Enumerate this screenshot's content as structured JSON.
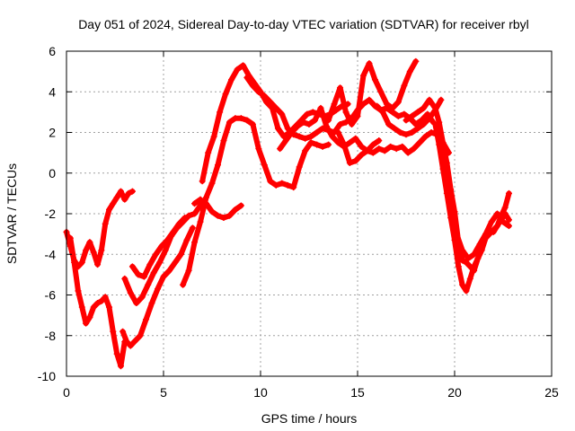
{
  "chart_data": {
    "type": "scatter",
    "title": "Day 051 of 2024, Sidereal Day-to-day VTEC variation (SDTVAR) for receiver rbyl",
    "xlabel": "GPS time / hours",
    "ylabel": "SDTVAR / TECUs",
    "xlim": [
      0,
      25
    ],
    "ylim": [
      -10,
      6
    ],
    "xticks": [
      "0",
      "5",
      "10",
      "15",
      "20",
      "25"
    ],
    "yticks": [
      "-10",
      "-8",
      "-6",
      "-4",
      "-2",
      "0",
      "2",
      "4",
      "6"
    ],
    "grid": true,
    "marker": "+",
    "color": "#ff0000",
    "series": [
      {
        "x": [
          0.0,
          0.2,
          0.4,
          0.6,
          0.8,
          1.0,
          1.2,
          1.4,
          1.6,
          1.8,
          2.0,
          2.2,
          2.4,
          2.6,
          2.8,
          3.0,
          3.2,
          3.4
        ],
        "y": [
          -2.9,
          -3.6,
          -4.3,
          -4.6,
          -4.4,
          -3.8,
          -3.4,
          -3.9,
          -4.5,
          -3.8,
          -2.5,
          -1.8,
          -1.5,
          -1.2,
          -0.9,
          -1.3,
          -1.0,
          -0.9
        ]
      },
      {
        "x": [
          0.2,
          0.4,
          0.6,
          0.8,
          1.0,
          1.2,
          1.4,
          1.6,
          1.8,
          2.0,
          2.2,
          2.4,
          2.6,
          2.8,
          3.0
        ],
        "y": [
          -3.2,
          -4.4,
          -5.8,
          -6.6,
          -7.4,
          -7.1,
          -6.6,
          -6.4,
          -6.3,
          -6.1,
          -6.6,
          -7.8,
          -8.9,
          -9.5,
          -8.3
        ]
      },
      {
        "x": [
          2.9,
          3.1,
          3.3,
          3.5,
          3.8,
          4.1,
          4.4,
          4.7,
          5.0,
          5.3,
          5.6,
          5.9,
          6.2,
          6.5
        ],
        "y": [
          -7.8,
          -8.3,
          -8.5,
          -8.3,
          -8.0,
          -7.2,
          -6.4,
          -5.7,
          -5.1,
          -4.8,
          -4.4,
          -4.0,
          -3.3,
          -2.7
        ]
      },
      {
        "x": [
          3.4,
          3.7,
          4.0,
          4.3,
          4.6,
          4.9,
          5.2,
          5.5,
          5.8,
          6.1
        ],
        "y": [
          -4.6,
          -5.0,
          -5.1,
          -4.5,
          -4.0,
          -3.6,
          -3.3,
          -2.9,
          -2.5,
          -2.2
        ]
      },
      {
        "x": [
          3.0,
          3.3,
          3.6,
          3.9,
          4.2,
          4.5,
          4.8,
          5.1,
          5.4,
          5.7,
          6.0,
          6.3,
          6.6,
          6.9,
          7.1
        ],
        "y": [
          -5.2,
          -5.9,
          -6.4,
          -6.1,
          -5.5,
          -4.9,
          -4.4,
          -3.8,
          -3.1,
          -2.7,
          -2.4,
          -2.1,
          -2.0,
          -1.6,
          -1.4
        ]
      },
      {
        "x": [
          6.0,
          6.3,
          6.6,
          6.9,
          7.2,
          7.5,
          7.8,
          8.1,
          8.4,
          8.7,
          9.0,
          9.3,
          9.6,
          9.9,
          10.2,
          10.5,
          10.8,
          11.1,
          11.4,
          11.7,
          12.0,
          12.3,
          12.6,
          12.9,
          13.2,
          13.5
        ],
        "y": [
          -5.5,
          -4.8,
          -3.4,
          -2.4,
          -1.2,
          -0.5,
          0.4,
          1.6,
          2.5,
          2.7,
          2.7,
          2.6,
          2.4,
          1.2,
          0.4,
          -0.4,
          -0.6,
          -0.5,
          -0.6,
          -0.7,
          0.3,
          1.1,
          1.5,
          1.4,
          1.3,
          1.4
        ]
      },
      {
        "x": [
          7.0,
          7.3,
          7.6,
          7.9,
          8.2,
          8.5,
          8.8,
          9.1,
          9.4,
          9.7,
          10.0,
          10.3,
          10.6,
          10.9,
          11.2,
          11.5,
          11.8,
          12.1,
          12.4,
          12.7,
          13.0,
          13.3,
          13.6,
          13.9,
          14.2,
          14.5
        ],
        "y": [
          -0.4,
          1.0,
          1.8,
          3.0,
          3.9,
          4.6,
          5.1,
          5.3,
          4.8,
          4.4,
          4.0,
          3.5,
          3.2,
          2.2,
          1.8,
          2.0,
          2.3,
          2.6,
          2.9,
          3.0,
          2.9,
          2.8,
          2.9,
          3.1,
          3.3,
          3.4
        ]
      },
      {
        "x": [
          6.6,
          6.9,
          7.2,
          7.5,
          7.8,
          8.1,
          8.4,
          8.7,
          9.0
        ],
        "y": [
          -1.5,
          -1.3,
          -1.5,
          -1.9,
          -2.1,
          -2.2,
          -2.1,
          -1.8,
          -1.6
        ]
      },
      {
        "x": [
          9.3,
          9.6,
          9.9,
          10.2,
          10.5,
          10.8,
          11.1,
          11.4,
          11.7,
          12.0,
          12.3,
          12.6,
          12.9,
          13.2,
          13.5,
          13.8,
          14.1,
          14.4,
          14.7,
          15.0,
          15.3,
          15.6,
          15.9,
          16.2,
          16.5,
          16.8,
          17.1,
          17.4,
          17.7,
          18.0,
          18.3,
          18.6,
          18.9
        ],
        "y": [
          4.7,
          4.3,
          4.0,
          3.8,
          3.5,
          3.2,
          2.9,
          2.2,
          1.9,
          1.8,
          1.7,
          1.8,
          2.0,
          2.2,
          2.1,
          2.0,
          2.4,
          2.5,
          2.7,
          3.1,
          3.4,
          3.6,
          3.3,
          3.1,
          3.2,
          3.0,
          2.8,
          2.9,
          2.7,
          2.4,
          2.6,
          2.9,
          2.5
        ]
      },
      {
        "x": [
          11.0,
          11.3,
          11.6,
          11.9,
          12.2,
          12.5,
          12.8,
          13.1,
          13.4,
          13.7,
          14.0,
          14.3,
          14.6,
          14.9,
          15.2,
          15.5,
          15.8,
          16.1
        ],
        "y": [
          1.2,
          1.6,
          2.0,
          2.3,
          2.5,
          2.4,
          2.6,
          3.2,
          2.3,
          1.8,
          1.5,
          1.3,
          1.5,
          1.7,
          1.3,
          1.1,
          1.4,
          1.6
        ]
      },
      {
        "x": [
          13.5,
          13.8,
          14.1,
          14.4,
          14.7,
          15.0,
          15.3,
          15.6,
          15.9,
          16.2,
          16.5,
          16.8,
          17.1,
          17.4,
          17.7,
          18.0
        ],
        "y": [
          2.6,
          3.4,
          4.2,
          3.0,
          2.4,
          2.8,
          4.8,
          5.4,
          4.6,
          4.0,
          3.4,
          3.2,
          3.5,
          4.3,
          5.0,
          5.5
        ]
      },
      {
        "x": [
          14.0,
          14.3,
          14.6,
          14.9,
          15.2,
          15.5,
          15.8,
          16.1,
          16.4,
          16.7,
          17.0,
          17.3,
          17.6,
          17.9,
          18.2,
          18.5,
          18.8,
          19.1,
          19.4,
          19.7
        ],
        "y": [
          2.0,
          1.4,
          0.5,
          0.6,
          0.9,
          1.1,
          1.0,
          1.2,
          1.1,
          1.3,
          1.2,
          1.3,
          1.0,
          1.2,
          1.5,
          1.8,
          2.0,
          1.9,
          1.5,
          1.0
        ]
      },
      {
        "x": [
          16.0,
          16.3,
          16.6,
          16.9,
          17.2,
          17.5,
          17.8,
          18.1,
          18.4,
          18.7,
          19.0,
          19.3
        ],
        "y": [
          3.3,
          3.0,
          2.4,
          2.2,
          2.0,
          1.9,
          2.0,
          2.2,
          2.4,
          2.7,
          3.1,
          3.6
        ]
      },
      {
        "x": [
          17.5,
          17.8,
          18.1,
          18.4,
          18.7,
          19.0,
          19.2,
          19.4,
          19.6,
          19.8,
          20.0,
          20.2,
          20.4,
          20.6,
          20.8,
          21.0,
          21.2,
          21.4,
          21.6,
          21.8,
          22.0,
          22.2,
          22.4,
          22.6,
          22.8
        ],
        "y": [
          2.6,
          2.8,
          3.0,
          3.2,
          3.6,
          3.2,
          2.5,
          1.5,
          0.5,
          -0.8,
          -1.9,
          -3.4,
          -4.3,
          -4.4,
          -4.6,
          -4.8,
          -4.2,
          -3.8,
          -3.2,
          -3.0,
          -2.8,
          -2.6,
          -2.1,
          -1.7,
          -1.0
        ]
      },
      {
        "x": [
          19.0,
          19.2,
          19.4,
          19.6,
          19.8,
          20.0,
          20.2,
          20.4,
          20.6,
          20.8,
          21.0,
          21.2,
          21.4,
          21.6,
          21.8,
          22.0,
          22.2,
          22.4,
          22.6,
          22.8
        ],
        "y": [
          2.4,
          1.4,
          0.2,
          -1.0,
          -2.2,
          -3.3,
          -4.6,
          -5.5,
          -5.8,
          -5.2,
          -4.6,
          -4.2,
          -3.7,
          -3.2,
          -2.8,
          -2.9,
          -2.6,
          -2.3,
          -2.0,
          -2.3
        ]
      },
      {
        "x": [
          19.5,
          19.8,
          20.1,
          20.4,
          20.7,
          21.0,
          21.3,
          21.6,
          21.9,
          22.2,
          22.5,
          22.8
        ],
        "y": [
          1.0,
          -1.5,
          -3.0,
          -3.8,
          -4.2,
          -4.0,
          -3.5,
          -3.0,
          -2.4,
          -2.0,
          -2.4,
          -2.6
        ]
      }
    ]
  }
}
